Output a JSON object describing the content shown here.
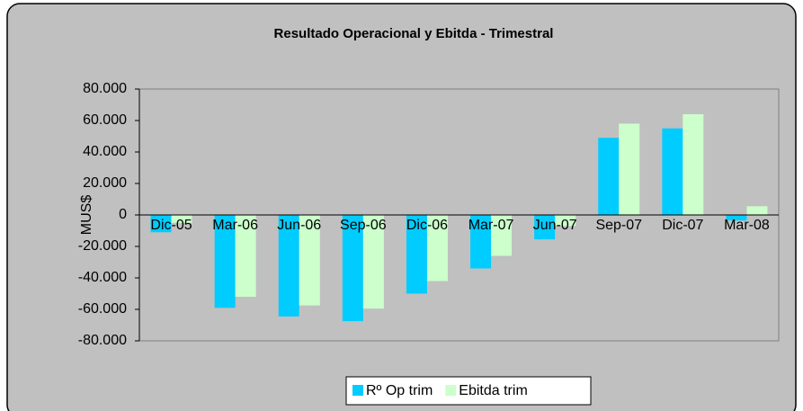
{
  "chart_data": {
    "type": "bar",
    "title": "Resultado Operacional y Ebitda - Trimestral",
    "y_label": "MUS$",
    "categories": [
      "Dic-05",
      "Mar-06",
      "Jun-06",
      "Sep-06",
      "Dic-06",
      "Mar-07",
      "Jun-07",
      "Sep-07",
      "Dic-07",
      "Mar-08"
    ],
    "series": [
      {
        "name": "Rº Op trim",
        "color": "#00ccff",
        "values": [
          -11000,
          -59000,
          -64500,
          -67500,
          -50000,
          -34000,
          -15500,
          49000,
          55000,
          -3500
        ]
      },
      {
        "name": "Ebitda trim",
        "color": "#ccffcc",
        "values": [
          -5000,
          -52000,
          -57500,
          -59500,
          -42000,
          -26000,
          -7000,
          58000,
          64000,
          5500
        ]
      }
    ],
    "ylim": [
      -80000,
      80000
    ],
    "yticks": [
      {
        "value": -80000,
        "label": "-80.000"
      },
      {
        "value": -60000,
        "label": "-60.000"
      },
      {
        "value": -40000,
        "label": "-40.000"
      },
      {
        "value": -20000,
        "label": "-20.000"
      },
      0,
      {
        "value": 20000,
        "label": "20.000"
      },
      {
        "value": 40000,
        "label": "40.000"
      },
      {
        "value": 60000,
        "label": "60.000"
      },
      {
        "value": 80000,
        "label": "80.000"
      }
    ],
    "legend": "bottom"
  }
}
